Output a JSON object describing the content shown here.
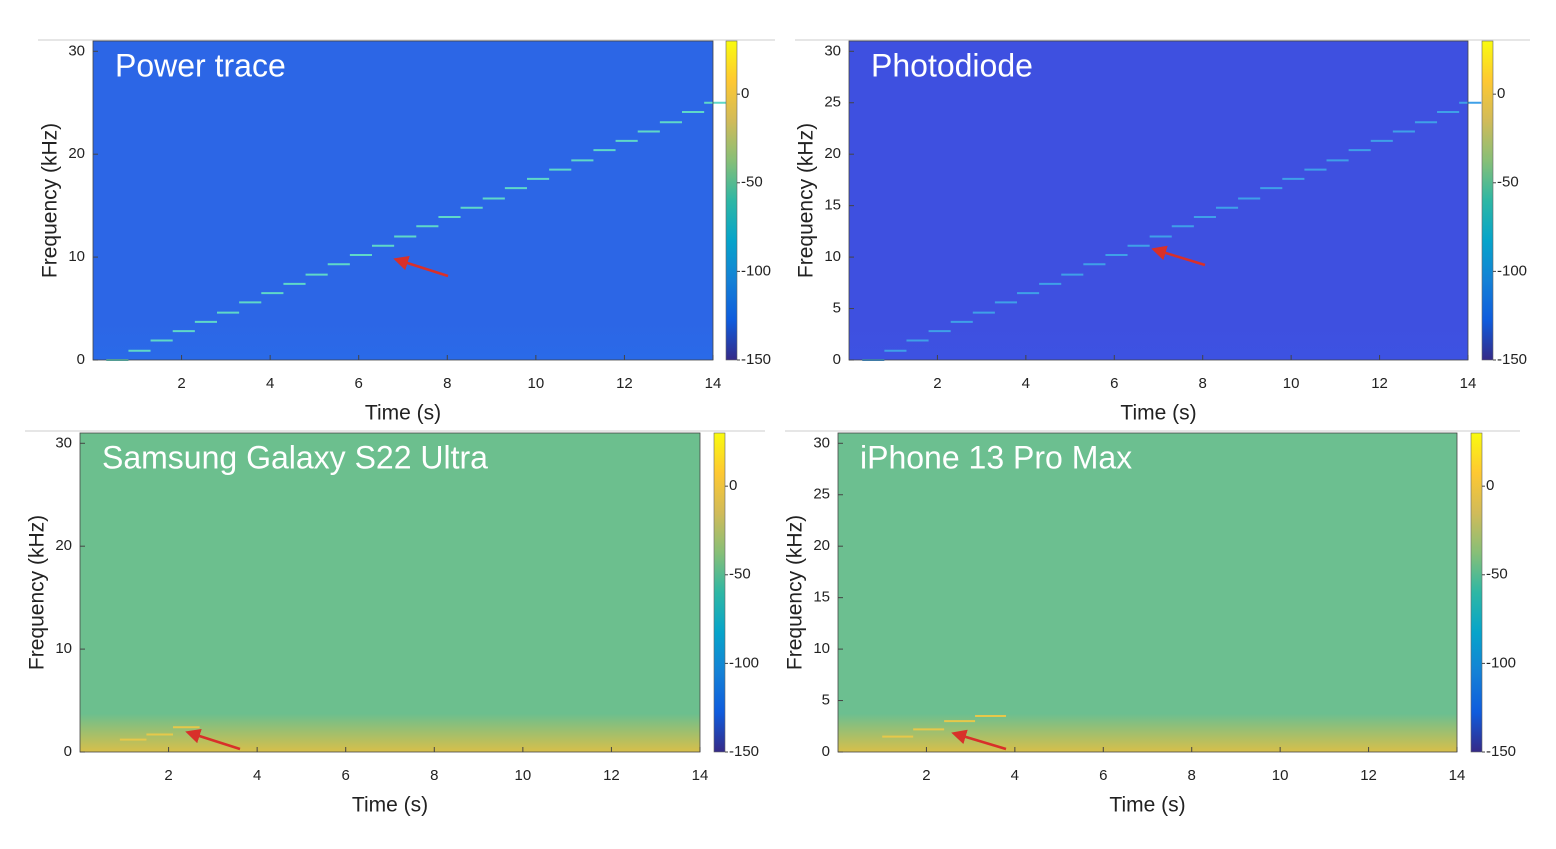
{
  "chart_data": [
    {
      "type": "spectrogram",
      "title": "Power trace",
      "xlabel": "Time (s)",
      "ylabel": "Frequency (kHz)",
      "xlim": [
        0,
        14
      ],
      "ylim": [
        0,
        31
      ],
      "xticks": [
        2,
        4,
        6,
        8,
        10,
        12,
        14
      ],
      "yticks": [
        0,
        10,
        20,
        30
      ],
      "clim": [
        -150,
        30
      ],
      "cticks": [
        -150,
        -100,
        -50,
        0
      ],
      "colormap": [
        "#352a87",
        "#0f5cdd",
        "#1481d6",
        "#06a4ca",
        "#2eb7a4",
        "#87bf77",
        "#d1bb59",
        "#fec832",
        "#f9fb0e"
      ],
      "background_colors": [
        "#2a6ae8",
        "#2c66e6"
      ],
      "tone_color": "#5fd8c8",
      "x": [
        0.3,
        0.8,
        1.3,
        1.8,
        2.3,
        2.8,
        3.3,
        3.8,
        4.3,
        4.8,
        5.3,
        5.8,
        6.3,
        6.8,
        7.3,
        7.8,
        8.3,
        8.8,
        9.3,
        9.8,
        10.3,
        10.8,
        11.3,
        11.8,
        12.3,
        12.8,
        13.3,
        13.8
      ],
      "values": [
        0,
        0.9,
        1.9,
        2.8,
        3.7,
        4.6,
        5.6,
        6.5,
        7.4,
        8.3,
        9.3,
        10.2,
        11.1,
        12,
        13,
        13.9,
        14.8,
        15.7,
        16.7,
        17.6,
        18.5,
        19.4,
        20.4,
        21.3,
        22.2,
        23.1,
        24.1,
        25
      ]
    },
    {
      "type": "spectrogram",
      "title": "Photodiode",
      "xlabel": "Time (s)",
      "ylabel": "Frequency (kHz)",
      "xlim": [
        0,
        14
      ],
      "ylim": [
        0,
        31
      ],
      "xticks": [
        2,
        4,
        6,
        8,
        10,
        12,
        14
      ],
      "yticks": [
        0,
        5,
        10,
        15,
        20,
        25,
        30
      ],
      "clim": [
        -150,
        30
      ],
      "cticks": [
        -150,
        -100,
        -50,
        0
      ],
      "colormap": [
        "#352a87",
        "#0f5cdd",
        "#1481d6",
        "#06a4ca",
        "#2eb7a4",
        "#87bf77",
        "#d1bb59",
        "#fec832",
        "#f9fb0e"
      ],
      "background_colors": [
        "#3d52e2",
        "#3e50e0"
      ],
      "tone_color": "#3fa0e8",
      "x": [
        0.3,
        0.8,
        1.3,
        1.8,
        2.3,
        2.8,
        3.3,
        3.8,
        4.3,
        4.8,
        5.3,
        5.8,
        6.3,
        6.8,
        7.3,
        7.8,
        8.3,
        8.8,
        9.3,
        9.8,
        10.3,
        10.8,
        11.3,
        11.8,
        12.3,
        12.8,
        13.3,
        13.8
      ],
      "values": [
        0,
        0.9,
        1.9,
        2.8,
        3.7,
        4.6,
        5.6,
        6.5,
        7.4,
        8.3,
        9.3,
        10.2,
        11.1,
        12,
        13,
        13.9,
        14.8,
        15.7,
        16.7,
        17.6,
        18.5,
        19.4,
        20.4,
        21.3,
        22.2,
        23.1,
        24.1,
        25
      ]
    },
    {
      "type": "spectrogram",
      "title": "Samsung Galaxy S22 Ultra",
      "xlabel": "Time (s)",
      "ylabel": "Frequency (kHz)",
      "xlim": [
        0,
        14
      ],
      "ylim": [
        0,
        31
      ],
      "xticks": [
        2,
        4,
        6,
        8,
        10,
        12,
        14
      ],
      "yticks": [
        0,
        10,
        20,
        30
      ],
      "clim": [
        -150,
        30
      ],
      "cticks": [
        -150,
        -100,
        -50,
        0
      ],
      "colormap": [
        "#352a87",
        "#0f5cdd",
        "#1481d6",
        "#06a4ca",
        "#2eb7a4",
        "#87bf77",
        "#d1bb59",
        "#fec832",
        "#f9fb0e"
      ],
      "background_colors": [
        "#d8bf4a",
        "#6cbf8e"
      ],
      "tone_color": "#e6c84a",
      "x": [
        0.9,
        1.5,
        2.1
      ],
      "values": [
        1.2,
        1.7,
        2.4
      ]
    },
    {
      "type": "spectrogram",
      "title": "iPhone 13 Pro Max",
      "xlabel": "Time (s)",
      "ylabel": "Frequency (kHz)",
      "xlim": [
        0,
        14
      ],
      "ylim": [
        0,
        31
      ],
      "xticks": [
        2,
        4,
        6,
        8,
        10,
        12,
        14
      ],
      "yticks": [
        0,
        5,
        10,
        15,
        20,
        25,
        30
      ],
      "clim": [
        -150,
        30
      ],
      "cticks": [
        -150,
        -100,
        -50,
        0
      ],
      "colormap": [
        "#352a87",
        "#0f5cdd",
        "#1481d6",
        "#06a4ca",
        "#2eb7a4",
        "#87bf77",
        "#d1bb59",
        "#fec832",
        "#f9fb0e"
      ],
      "background_colors": [
        "#d8bf4a",
        "#6cbf90"
      ],
      "tone_color": "#e6c84a",
      "x": [
        1.0,
        1.7,
        2.4,
        3.1
      ],
      "values": [
        1.5,
        2.2,
        3.0,
        3.5
      ]
    }
  ]
}
